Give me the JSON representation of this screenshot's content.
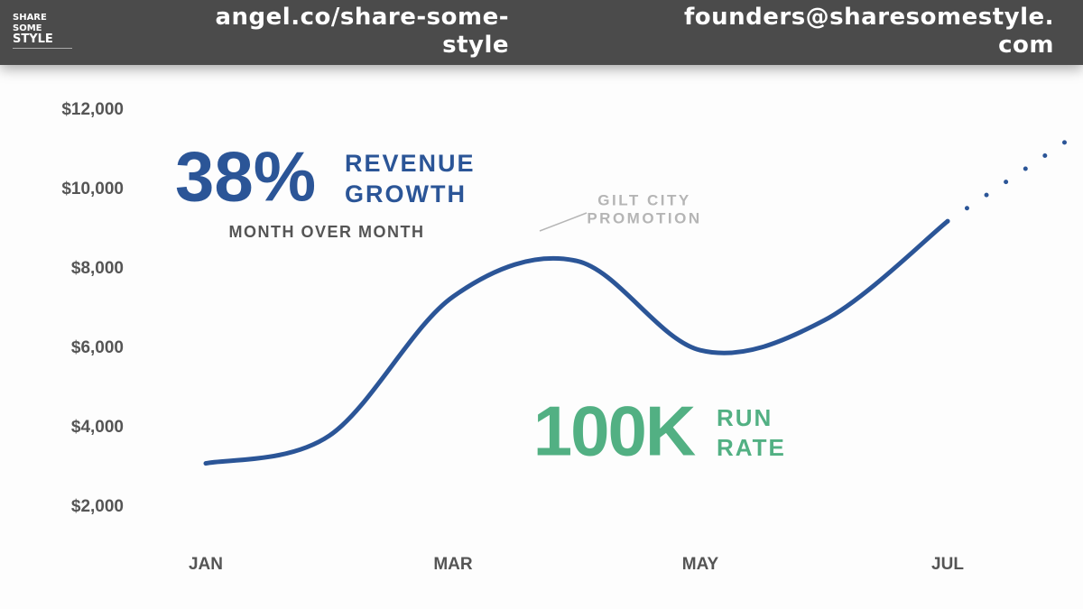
{
  "header": {
    "logo": [
      "SHARE",
      "SOME",
      "STYLE"
    ],
    "link": [
      "angel.co/share-some-",
      "style"
    ],
    "email": [
      "founders@sharesomestyle.",
      "com"
    ]
  },
  "chart_data": {
    "type": "line",
    "categories": [
      "JAN",
      null,
      "MAR",
      null,
      "MAY",
      null,
      "JUL",
      null
    ],
    "series": [
      {
        "color": "#2b5597",
        "style": "solid",
        "values": [
          3100,
          3800,
          7300,
          8200,
          5950,
          6700,
          9200,
          null
        ]
      },
      {
        "color": "#2b5597",
        "style": "dotted",
        "values": [
          null,
          null,
          null,
          null,
          null,
          null,
          9200,
          11300
        ]
      }
    ],
    "ylim": [
      1500,
      12500
    ],
    "yticks": [
      {
        "value": 2000,
        "label": "$2,000"
      },
      {
        "value": 4000,
        "label": "$4,000"
      },
      {
        "value": 6000,
        "label": "$6,000"
      },
      {
        "value": 8000,
        "label": "$8,000"
      },
      {
        "value": 10000,
        "label": "$10,000"
      },
      {
        "value": 12000,
        "label": "$12,000"
      }
    ],
    "grid": false,
    "annotations": {
      "big_stat": "38%",
      "stat_label": [
        "REVENUE",
        "GROWTH"
      ],
      "stat_sub": "MONTH OVER MONTH",
      "callout": [
        "GILT CITY",
        "PROMOTION"
      ],
      "run_rate": "100K",
      "run_rate_label": [
        "RUN",
        "RATE"
      ]
    }
  }
}
